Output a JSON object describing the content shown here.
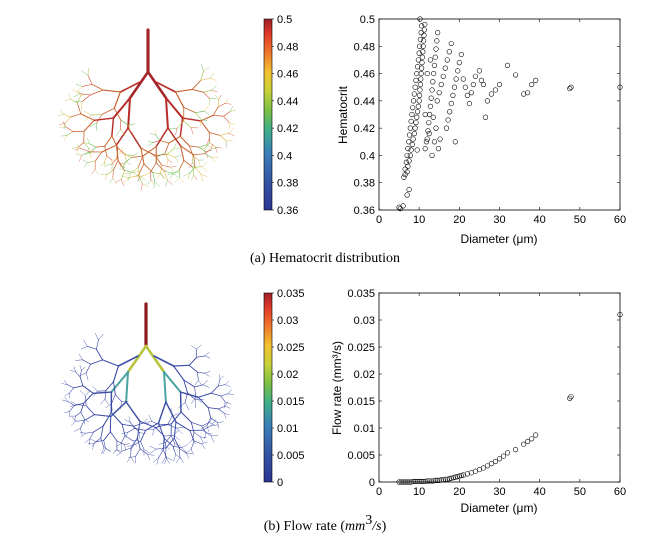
{
  "panels": [
    {
      "caption": "(a) Hematocrit distribution",
      "colorbar": {
        "ticks": [
          "0.5",
          "0.48",
          "0.46",
          "0.44",
          "0.42",
          "0.4",
          "0.38",
          "0.36"
        ],
        "min": 0.36,
        "max": 0.5
      },
      "tree_colors": {
        "trunk": "#a3262a",
        "branch": "#b62d27",
        "twig": "#c7602a",
        "leaf_tips": [
          "#e0b23a",
          "#9bc13c",
          "#57b847",
          "#d4492c"
        ]
      },
      "chart_data": {
        "type": "scatter",
        "xlabel": "Diameter (μm)",
        "ylabel": "Hematocrit",
        "xlim": [
          0,
          60
        ],
        "ylim": [
          0.36,
          0.5
        ],
        "xticks": [
          "0",
          "10",
          "20",
          "30",
          "40",
          "50",
          "60"
        ],
        "yticks": [
          "0.36",
          "0.38",
          "0.4",
          "0.42",
          "0.44",
          "0.46",
          "0.48",
          "0.5"
        ],
        "points": [
          [
            5,
            0.362
          ],
          [
            5.3,
            0.361
          ],
          [
            6,
            0.363
          ],
          [
            7,
            0.371
          ],
          [
            7.5,
            0.375
          ],
          [
            6.2,
            0.384
          ],
          [
            6.5,
            0.386
          ],
          [
            7,
            0.388
          ],
          [
            7.2,
            0.392
          ],
          [
            7.5,
            0.396
          ],
          [
            7.8,
            0.4
          ],
          [
            8,
            0.404
          ],
          [
            8.3,
            0.408
          ],
          [
            8.5,
            0.412
          ],
          [
            8.8,
            0.416
          ],
          [
            9,
            0.42
          ],
          [
            9.2,
            0.424
          ],
          [
            9.4,
            0.428
          ],
          [
            9.6,
            0.432
          ],
          [
            9.8,
            0.436
          ],
          [
            10,
            0.44
          ],
          [
            10.1,
            0.444
          ],
          [
            10.2,
            0.448
          ],
          [
            10.3,
            0.452
          ],
          [
            10.4,
            0.456
          ],
          [
            10.5,
            0.46
          ],
          [
            10.6,
            0.464
          ],
          [
            10.7,
            0.468
          ],
          [
            10.8,
            0.472
          ],
          [
            10.9,
            0.476
          ],
          [
            11,
            0.48
          ],
          [
            11.1,
            0.484
          ],
          [
            11.2,
            0.488
          ],
          [
            11.3,
            0.492
          ],
          [
            11.4,
            0.496
          ],
          [
            10.2,
            0.5
          ],
          [
            6.5,
            0.39
          ],
          [
            6.8,
            0.395
          ],
          [
            7,
            0.4
          ],
          [
            7.2,
            0.405
          ],
          [
            7.4,
            0.41
          ],
          [
            7.6,
            0.415
          ],
          [
            7.8,
            0.42
          ],
          [
            8,
            0.425
          ],
          [
            8.2,
            0.43
          ],
          [
            8.4,
            0.435
          ],
          [
            8.6,
            0.44
          ],
          [
            8.8,
            0.445
          ],
          [
            9,
            0.45
          ],
          [
            9.2,
            0.455
          ],
          [
            9.4,
            0.46
          ],
          [
            9.6,
            0.465
          ],
          [
            9.8,
            0.47
          ],
          [
            10,
            0.475
          ],
          [
            10.1,
            0.48
          ],
          [
            10.3,
            0.485
          ],
          [
            10.5,
            0.49
          ],
          [
            10.6,
            0.495
          ],
          [
            12,
            0.412
          ],
          [
            12.2,
            0.418
          ],
          [
            12.4,
            0.424
          ],
          [
            12.6,
            0.43
          ],
          [
            12.8,
            0.436
          ],
          [
            13,
            0.442
          ],
          [
            13.2,
            0.448
          ],
          [
            13.4,
            0.454
          ],
          [
            13.6,
            0.46
          ],
          [
            13.8,
            0.466
          ],
          [
            14,
            0.472
          ],
          [
            14.2,
            0.478
          ],
          [
            14.4,
            0.484
          ],
          [
            14.6,
            0.49
          ],
          [
            11.5,
            0.405
          ],
          [
            11.8,
            0.41
          ],
          [
            12.5,
            0.416
          ],
          [
            13.5,
            0.428
          ],
          [
            14.5,
            0.44
          ],
          [
            15,
            0.446
          ],
          [
            15.5,
            0.452
          ],
          [
            16,
            0.458
          ],
          [
            16.5,
            0.464
          ],
          [
            17,
            0.47
          ],
          [
            17.5,
            0.476
          ],
          [
            18,
            0.482
          ],
          [
            16.8,
            0.42
          ],
          [
            17.2,
            0.426
          ],
          [
            17.6,
            0.432
          ],
          [
            18,
            0.438
          ],
          [
            18.4,
            0.444
          ],
          [
            18.8,
            0.45
          ],
          [
            19.2,
            0.456
          ],
          [
            19.6,
            0.462
          ],
          [
            20,
            0.468
          ],
          [
            20.5,
            0.474
          ],
          [
            21,
            0.456
          ],
          [
            21.5,
            0.45
          ],
          [
            22,
            0.444
          ],
          [
            22.5,
            0.438
          ],
          [
            23,
            0.446
          ],
          [
            23.5,
            0.452
          ],
          [
            24,
            0.458
          ],
          [
            25,
            0.462
          ],
          [
            26,
            0.452
          ],
          [
            26.5,
            0.428
          ],
          [
            27,
            0.44
          ],
          [
            28,
            0.445
          ],
          [
            29,
            0.448
          ],
          [
            30,
            0.452
          ],
          [
            32,
            0.466
          ],
          [
            34,
            0.459
          ],
          [
            36,
            0.445
          ],
          [
            37,
            0.446
          ],
          [
            38,
            0.452
          ],
          [
            39,
            0.455
          ],
          [
            47.5,
            0.449
          ],
          [
            47.8,
            0.45
          ],
          [
            60,
            0.45
          ],
          [
            14.8,
            0.405
          ],
          [
            15.2,
            0.412
          ],
          [
            9.5,
            0.404
          ],
          [
            11.5,
            0.43
          ],
          [
            12,
            0.46
          ],
          [
            12.8,
            0.47
          ],
          [
            13.2,
            0.4
          ],
          [
            13.8,
            0.41
          ],
          [
            14.2,
            0.42
          ],
          [
            19,
            0.41
          ],
          [
            25.5,
            0.455
          ]
        ]
      }
    },
    {
      "caption_text": "(b) Flow rate (",
      "caption_math": "mm",
      "caption_sup": "3",
      "caption_math2": "/s",
      "caption_close": ")",
      "colorbar": {
        "ticks": [
          "0.035",
          "0.03",
          "0.025",
          "0.02",
          "0.015",
          "0.01",
          "0.005",
          "0"
        ],
        "min": 0,
        "max": 0.035
      },
      "tree_colors": {
        "trunk": "#8b1a1f",
        "branch_upper": "#b9c43a",
        "branch_mid": "#4aa3a0",
        "branch": "#3c4ea6",
        "twig": "#2b3aa0"
      },
      "chart_data": {
        "type": "scatter",
        "xlabel": "Diameter (μm)",
        "ylabel": "Flow rate (mm³/s)",
        "xlim": [
          0,
          60
        ],
        "ylim": [
          0,
          0.035
        ],
        "xticks": [
          "0",
          "10",
          "20",
          "30",
          "40",
          "50",
          "60"
        ],
        "yticks": [
          "0",
          "0.005",
          "0.01",
          "0.015",
          "0.02",
          "0.025",
          "0.03",
          "0.035"
        ],
        "points": [
          [
            5,
            0.0
          ],
          [
            5.5,
            0.0
          ],
          [
            6,
            0.0
          ],
          [
            6.5,
            0.0
          ],
          [
            7,
            0.0
          ],
          [
            7.5,
            0.0
          ],
          [
            8,
            0.0
          ],
          [
            8.5,
            0.0001
          ],
          [
            9,
            0.0001
          ],
          [
            9.5,
            0.0001
          ],
          [
            10,
            0.0001
          ],
          [
            10.5,
            0.0001
          ],
          [
            11,
            0.0001
          ],
          [
            11.5,
            0.0001
          ],
          [
            12,
            0.0002
          ],
          [
            12.5,
            0.0002
          ],
          [
            13,
            0.0002
          ],
          [
            13.5,
            0.0002
          ],
          [
            14,
            0.0003
          ],
          [
            14.5,
            0.0003
          ],
          [
            15,
            0.0003
          ],
          [
            15.5,
            0.0004
          ],
          [
            16,
            0.0004
          ],
          [
            16.5,
            0.0005
          ],
          [
            17,
            0.0005
          ],
          [
            17.5,
            0.0006
          ],
          [
            18,
            0.0007
          ],
          [
            18.5,
            0.0008
          ],
          [
            19,
            0.0009
          ],
          [
            19.5,
            0.001
          ],
          [
            20,
            0.0011
          ],
          [
            20.5,
            0.0012
          ],
          [
            21,
            0.0013
          ],
          [
            22,
            0.0015
          ],
          [
            23,
            0.0017
          ],
          [
            24,
            0.002
          ],
          [
            25,
            0.0023
          ],
          [
            26,
            0.0026
          ],
          [
            27,
            0.003
          ],
          [
            28,
            0.0034
          ],
          [
            29,
            0.0038
          ],
          [
            30,
            0.0043
          ],
          [
            31,
            0.0048
          ],
          [
            32,
            0.0054
          ],
          [
            34,
            0.006
          ],
          [
            36,
            0.007
          ],
          [
            37,
            0.0075
          ],
          [
            38,
            0.008
          ],
          [
            39,
            0.0087
          ],
          [
            47.5,
            0.0155
          ],
          [
            47.8,
            0.0158
          ],
          [
            60,
            0.031
          ]
        ]
      }
    }
  ]
}
